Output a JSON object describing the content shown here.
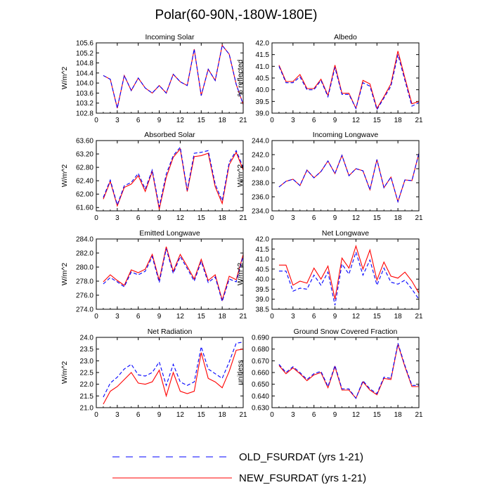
{
  "title": "Polar(60-90N,-180W-180E)",
  "colors": {
    "old": "#0000ff",
    "new": "#ff0000",
    "axis": "#000000",
    "background": "#ffffff"
  },
  "legend": {
    "old_label": "OLD_FSURDAT (yrs 1-21)",
    "new_label": "NEW_FSURDAT (yrs 1-21)"
  },
  "chart_data": [
    {
      "type": "line",
      "title": "Incoming Solar",
      "xlabel": "",
      "ylabel": "W/m^2",
      "xlim": [
        0,
        21
      ],
      "ylim": [
        102.8,
        105.6
      ],
      "xticks": [
        0,
        3,
        6,
        9,
        12,
        15,
        18,
        21
      ],
      "yticks": [
        102.8,
        103.2,
        103.6,
        104.0,
        104.4,
        104.8,
        105.2,
        105.6
      ],
      "ytick_labels": [
        "102.8",
        "103.2",
        "103.6",
        "104.0",
        "104.4",
        "104.8",
        "105.2",
        "105.6"
      ],
      "x": [
        1,
        2,
        3,
        4,
        5,
        6,
        7,
        8,
        9,
        10,
        11,
        12,
        13,
        14,
        15,
        16,
        17,
        18,
        19,
        20,
        21
      ],
      "series": [
        {
          "name": "OLD_FSURDAT (yrs 1-21)",
          "style": "dashed",
          "values": [
            104.3,
            104.15,
            103.0,
            104.3,
            103.7,
            104.2,
            103.8,
            103.6,
            103.9,
            103.6,
            104.35,
            104.05,
            103.9,
            105.35,
            103.5,
            104.55,
            104.1,
            105.5,
            105.15,
            103.95,
            103.15
          ]
        },
        {
          "name": "NEW_FSURDAT (yrs 1-21)",
          "style": "solid",
          "values": [
            104.3,
            104.15,
            103.0,
            104.3,
            103.7,
            104.2,
            103.8,
            103.6,
            103.9,
            103.6,
            104.35,
            104.05,
            103.9,
            105.35,
            103.5,
            104.55,
            104.1,
            105.5,
            105.15,
            103.95,
            103.15
          ]
        }
      ]
    },
    {
      "type": "line",
      "title": "Albedo",
      "xlabel": "",
      "ylabel": "% reflected",
      "xlim": [
        0,
        21
      ],
      "ylim": [
        39.0,
        42.0
      ],
      "xticks": [
        0,
        3,
        6,
        9,
        12,
        15,
        18,
        21
      ],
      "yticks": [
        39.0,
        39.5,
        40.0,
        40.5,
        41.0,
        41.5,
        42.0
      ],
      "ytick_labels": [
        "39.0",
        "39.5",
        "40.0",
        "40.5",
        "41.0",
        "41.5",
        "42.0"
      ],
      "x": [
        1,
        2,
        3,
        4,
        5,
        6,
        7,
        8,
        9,
        10,
        11,
        12,
        13,
        14,
        15,
        16,
        17,
        18,
        19,
        20,
        21
      ],
      "series": [
        {
          "name": "OLD_FSURDAT (yrs 1-21)",
          "style": "dashed",
          "values": [
            41.0,
            40.3,
            40.3,
            40.55,
            40.0,
            40.0,
            40.4,
            39.7,
            40.95,
            39.8,
            39.8,
            39.2,
            40.3,
            40.15,
            39.15,
            39.65,
            40.15,
            41.5,
            40.4,
            39.3,
            39.45
          ]
        },
        {
          "name": "NEW_FSURDAT (yrs 1-21)",
          "style": "solid",
          "values": [
            41.05,
            40.35,
            40.35,
            40.65,
            40.05,
            40.05,
            40.45,
            39.75,
            41.05,
            39.85,
            39.85,
            39.2,
            40.4,
            40.25,
            39.2,
            39.7,
            40.25,
            41.65,
            40.5,
            39.4,
            39.5
          ]
        }
      ]
    },
    {
      "type": "line",
      "title": "Absorbed Solar",
      "xlabel": "",
      "ylabel": "W/m^2",
      "xlim": [
        0,
        21
      ],
      "ylim": [
        61.5,
        63.6
      ],
      "xticks": [
        0,
        3,
        6,
        9,
        12,
        15,
        18,
        21
      ],
      "yticks": [
        61.6,
        62.0,
        62.4,
        62.8,
        63.2,
        63.6
      ],
      "ytick_labels": [
        "61.60",
        "62.00",
        "62.40",
        "62.80",
        "63.20",
        "63.60"
      ],
      "x": [
        1,
        2,
        3,
        4,
        5,
        6,
        7,
        8,
        9,
        10,
        11,
        12,
        13,
        14,
        15,
        16,
        17,
        18,
        19,
        20,
        21
      ],
      "series": [
        {
          "name": "OLD_FSURDAT (yrs 1-21)",
          "style": "dashed",
          "values": [
            61.9,
            62.42,
            61.68,
            62.25,
            62.35,
            62.62,
            62.15,
            62.72,
            61.62,
            62.6,
            63.15,
            63.4,
            62.12,
            63.22,
            63.25,
            63.3,
            62.3,
            61.8,
            62.95,
            63.3,
            62.8
          ]
        },
        {
          "name": "NEW_FSURDAT (yrs 1-21)",
          "style": "solid",
          "values": [
            61.85,
            62.38,
            61.65,
            62.2,
            62.3,
            62.55,
            62.08,
            62.68,
            61.55,
            62.5,
            63.1,
            63.35,
            62.08,
            63.12,
            63.15,
            63.22,
            62.22,
            61.72,
            62.88,
            63.25,
            62.72
          ]
        }
      ]
    },
    {
      "type": "line",
      "title": "Incoming Longwave",
      "xlabel": "",
      "ylabel": "W/m^2",
      "xlim": [
        0,
        21
      ],
      "ylim": [
        234.0,
        244.0
      ],
      "xticks": [
        0,
        3,
        6,
        9,
        12,
        15,
        18,
        21
      ],
      "yticks": [
        234.0,
        236.0,
        238.0,
        240.0,
        242.0,
        244.0
      ],
      "ytick_labels": [
        "234.0",
        "236.0",
        "238.0",
        "240.0",
        "242.0",
        "244.0"
      ],
      "x": [
        1,
        2,
        3,
        4,
        5,
        6,
        7,
        8,
        9,
        10,
        11,
        12,
        13,
        14,
        15,
        16,
        17,
        18,
        19,
        20,
        21
      ],
      "series": [
        {
          "name": "OLD_FSURDAT (yrs 1-21)",
          "style": "dashed",
          "values": [
            237.4,
            238.2,
            238.5,
            237.6,
            239.8,
            238.7,
            239.6,
            241.1,
            239.3,
            241.9,
            239.0,
            240.0,
            239.7,
            237.0,
            241.3,
            237.3,
            238.8,
            235.3,
            238.4,
            238.3,
            242.2
          ]
        },
        {
          "name": "NEW_FSURDAT (yrs 1-21)",
          "style": "solid",
          "values": [
            237.4,
            238.2,
            238.5,
            237.6,
            239.8,
            238.7,
            239.6,
            241.1,
            239.3,
            241.9,
            239.0,
            240.0,
            239.7,
            237.0,
            241.3,
            237.3,
            238.8,
            235.3,
            238.4,
            238.3,
            242.2
          ]
        }
      ]
    },
    {
      "type": "line",
      "title": "Emitted Longwave",
      "xlabel": "",
      "ylabel": "W/m^2",
      "xlim": [
        0,
        21
      ],
      "ylim": [
        274.0,
        284.0
      ],
      "xticks": [
        0,
        3,
        6,
        9,
        12,
        15,
        18,
        21
      ],
      "yticks": [
        274.0,
        276.0,
        278.0,
        280.0,
        282.0,
        284.0
      ],
      "ytick_labels": [
        "274.0",
        "276.0",
        "278.0",
        "280.0",
        "282.0",
        "284.0"
      ],
      "x": [
        1,
        2,
        3,
        4,
        5,
        6,
        7,
        8,
        9,
        10,
        11,
        12,
        13,
        14,
        15,
        16,
        17,
        18,
        19,
        20,
        21
      ],
      "series": [
        {
          "name": "OLD_FSURDAT (yrs 1-21)",
          "style": "dashed",
          "values": [
            277.6,
            278.5,
            277.9,
            277.2,
            279.3,
            278.9,
            279.4,
            281.5,
            277.8,
            282.6,
            279.1,
            281.5,
            279.8,
            278.0,
            280.8,
            277.8,
            278.6,
            275.1,
            278.3,
            277.9,
            281.6
          ]
        },
        {
          "name": "NEW_FSURDAT (yrs 1-21)",
          "style": "solid",
          "values": [
            277.9,
            278.9,
            278.1,
            277.4,
            279.6,
            279.2,
            279.7,
            281.8,
            278.1,
            282.9,
            279.4,
            281.8,
            280.1,
            278.3,
            281.1,
            278.1,
            278.9,
            275.3,
            278.7,
            278.2,
            281.8
          ]
        }
      ]
    },
    {
      "type": "line",
      "title": "Net Longwave",
      "xlabel": "",
      "ylabel": "W/m^2",
      "xlim": [
        0,
        21
      ],
      "ylim": [
        38.5,
        42.0
      ],
      "xticks": [
        0,
        3,
        6,
        9,
        12,
        15,
        18,
        21
      ],
      "yticks": [
        38.5,
        39.0,
        39.5,
        40.0,
        40.5,
        41.0,
        41.5,
        42.0
      ],
      "ytick_labels": [
        "38.5",
        "39.0",
        "39.5",
        "40.0",
        "40.5",
        "41.0",
        "41.5",
        "42.0"
      ],
      "x": [
        1,
        2,
        3,
        4,
        5,
        6,
        7,
        8,
        9,
        10,
        11,
        12,
        13,
        14,
        15,
        16,
        17,
        18,
        19,
        20,
        21
      ],
      "series": [
        {
          "name": "OLD_FSURDAT (yrs 1-21)",
          "style": "dashed",
          "values": [
            40.4,
            40.4,
            39.4,
            39.55,
            39.5,
            40.2,
            39.7,
            40.35,
            38.7,
            40.75,
            40.25,
            41.35,
            40.2,
            40.95,
            39.7,
            40.55,
            39.85,
            39.75,
            39.95,
            39.5,
            39.0
          ]
        },
        {
          "name": "NEW_FSURDAT (yrs 1-21)",
          "style": "solid",
          "values": [
            40.7,
            40.7,
            39.7,
            39.9,
            39.8,
            40.55,
            40.0,
            40.65,
            39.0,
            41.05,
            40.55,
            41.65,
            40.5,
            41.45,
            39.95,
            40.85,
            40.15,
            40.05,
            40.35,
            39.9,
            39.3
          ]
        }
      ]
    },
    {
      "type": "line",
      "title": "Net Radiation",
      "xlabel": "",
      "ylabel": "W/m^2",
      "xlim": [
        0,
        21
      ],
      "ylim": [
        21.0,
        24.0
      ],
      "xticks": [
        0,
        3,
        6,
        9,
        12,
        15,
        18,
        21
      ],
      "yticks": [
        21.0,
        21.5,
        22.0,
        22.5,
        23.0,
        23.5,
        24.0
      ],
      "ytick_labels": [
        "21.0",
        "21.5",
        "22.0",
        "22.5",
        "23.0",
        "23.5",
        "24.0"
      ],
      "x": [
        1,
        2,
        3,
        4,
        5,
        6,
        7,
        8,
        9,
        10,
        11,
        12,
        13,
        14,
        15,
        16,
        17,
        18,
        19,
        20,
        21
      ],
      "series": [
        {
          "name": "OLD_FSURDAT (yrs 1-21)",
          "style": "dashed",
          "values": [
            21.45,
            22.05,
            22.3,
            22.65,
            22.85,
            22.4,
            22.35,
            22.5,
            22.95,
            21.95,
            22.85,
            22.1,
            21.95,
            22.1,
            23.6,
            22.65,
            22.45,
            22.25,
            22.95,
            23.75,
            23.8
          ]
        },
        {
          "name": "NEW_FSURDAT (yrs 1-21)",
          "style": "solid",
          "values": [
            21.15,
            21.7,
            21.9,
            22.2,
            22.5,
            22.05,
            22.0,
            22.1,
            22.6,
            21.5,
            22.5,
            21.7,
            21.6,
            21.7,
            23.35,
            22.25,
            22.1,
            21.85,
            22.55,
            23.45,
            23.5
          ]
        }
      ]
    },
    {
      "type": "line",
      "title": "Ground Snow Covered Fraction",
      "xlabel": "",
      "ylabel": "unitless",
      "xlim": [
        0,
        21
      ],
      "ylim": [
        0.63,
        0.69
      ],
      "xticks": [
        0,
        3,
        6,
        9,
        12,
        15,
        18,
        21
      ],
      "yticks": [
        0.63,
        0.64,
        0.65,
        0.66,
        0.67,
        0.68,
        0.69
      ],
      "ytick_labels": [
        "0.630",
        "0.640",
        "0.650",
        "0.660",
        "0.670",
        "0.680",
        "0.690"
      ],
      "x": [
        1,
        2,
        3,
        4,
        5,
        6,
        7,
        8,
        9,
        10,
        11,
        12,
        13,
        14,
        15,
        16,
        17,
        18,
        19,
        20,
        21
      ],
      "series": [
        {
          "name": "OLD_FSURDAT (yrs 1-21)",
          "style": "dashed",
          "values": [
            0.667,
            0.66,
            0.665,
            0.66,
            0.654,
            0.659,
            0.661,
            0.648,
            0.666,
            0.646,
            0.646,
            0.638,
            0.653,
            0.646,
            0.642,
            0.656,
            0.655,
            0.685,
            0.666,
            0.649,
            0.649
          ]
        },
        {
          "name": "NEW_FSURDAT (yrs 1-21)",
          "style": "solid",
          "values": [
            0.666,
            0.659,
            0.664,
            0.659,
            0.653,
            0.658,
            0.66,
            0.647,
            0.665,
            0.645,
            0.645,
            0.638,
            0.652,
            0.645,
            0.641,
            0.655,
            0.654,
            0.684,
            0.665,
            0.648,
            0.648
          ]
        }
      ]
    }
  ]
}
